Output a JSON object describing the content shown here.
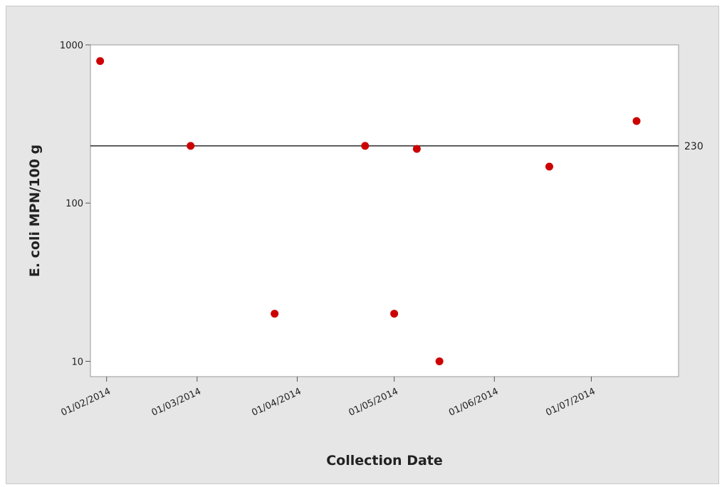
{
  "chart_data": {
    "type": "scatter",
    "title": "",
    "xlabel": "Collection Date",
    "ylabel": "E. coli MPN/100 g",
    "y_scale": "log",
    "ylim": [
      8,
      1000
    ],
    "xlim": [
      "2014-01-27",
      "2014-07-28"
    ],
    "y_ticks": [
      {
        "value": 10,
        "label": "10"
      },
      {
        "value": 100,
        "label": "100"
      },
      {
        "value": 1000,
        "label": "1000"
      }
    ],
    "x_ticks": [
      {
        "value": "2014-02-01",
        "label": "01/02/2014"
      },
      {
        "value": "2014-03-01",
        "label": "01/03/2014"
      },
      {
        "value": "2014-04-01",
        "label": "01/04/2014"
      },
      {
        "value": "2014-05-01",
        "label": "01/05/2014"
      },
      {
        "value": "2014-06-01",
        "label": "01/06/2014"
      },
      {
        "value": "2014-07-01",
        "label": "01/07/2014"
      }
    ],
    "reference_line": {
      "value": 230,
      "label": "230",
      "color": "#000000"
    },
    "points": [
      {
        "x": "2014-01-30",
        "y": 790
      },
      {
        "x": "2014-02-27",
        "y": 230
      },
      {
        "x": "2014-03-25",
        "y": 20
      },
      {
        "x": "2014-04-22",
        "y": 230
      },
      {
        "x": "2014-05-01",
        "y": 20
      },
      {
        "x": "2014-05-08",
        "y": 220
      },
      {
        "x": "2014-05-15",
        "y": 10
      },
      {
        "x": "2014-06-18",
        "y": 170
      },
      {
        "x": "2014-07-15",
        "y": 330
      }
    ],
    "point_color": "#cc0000",
    "grid": false
  }
}
